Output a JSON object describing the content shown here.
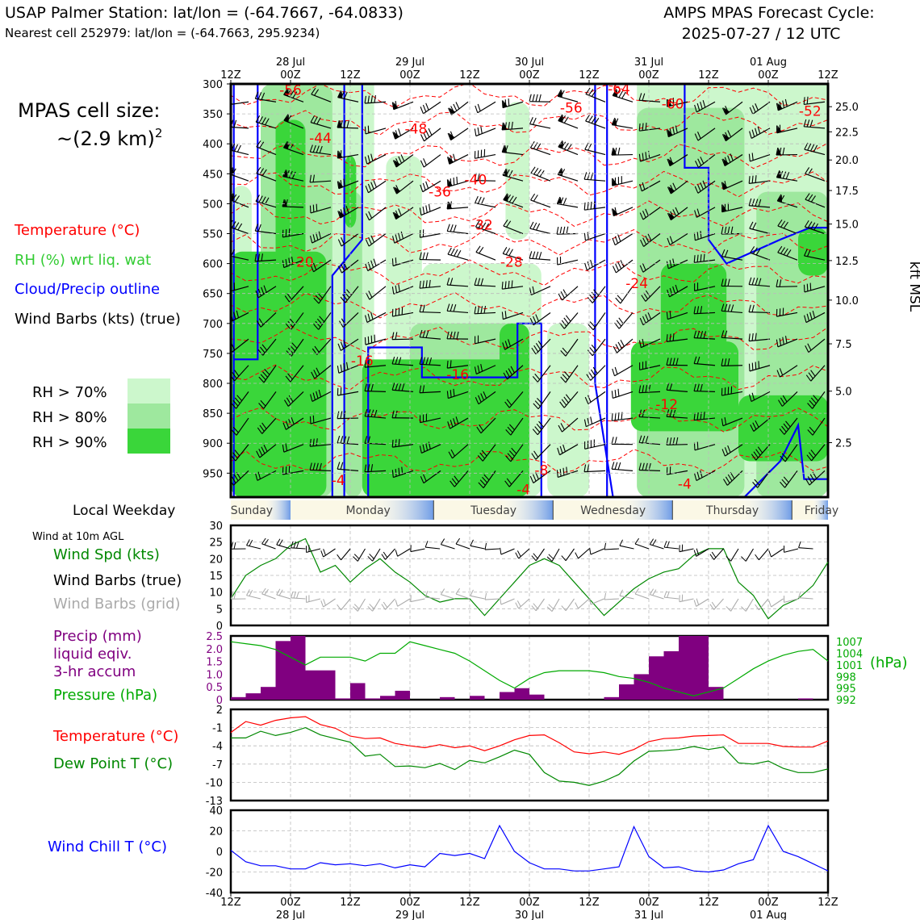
{
  "header": {
    "title_left": "USAP Palmer Station: lat/lon = (-64.7667, -64.0833)",
    "subtitle_left": "Nearest cell 252979: lat/lon = (-64.7663, 295.9234)",
    "title_right_1": "AMPS MPAS Forecast Cycle:",
    "title_right_2": "2025-07-27 / 12 UTC"
  },
  "left_legend": {
    "cell_size_1": "MPAS cell size:",
    "cell_size_2": "~(2.9 km)",
    "cell_size_sup": "2",
    "temperature": "Temperature (°C)",
    "rh": "RH (%) wrt liq. wat",
    "cloud": "Cloud/Precip outline",
    "wind": "Wind Barbs (kts) (true)",
    "rh70": "RH > 70%",
    "rh80": "RH > 80%",
    "rh90": "RH > 90%",
    "local_weekday": "Local Weekday",
    "wind10m": "Wind at 10m AGL",
    "wind_spd": "Wind Spd (kts)",
    "wind_barbs_true": "Wind Barbs (true)",
    "wind_barbs_grid": "Wind Barbs (grid)",
    "precip_1": "Precip (mm)",
    "precip_2": "liquid eqiv.",
    "precip_3": "3-hr accum",
    "pressure": "Pressure (hPa)",
    "temp2": "Temperature (°C)",
    "dewpt": "Dew Point T (°C)",
    "windchill": "Wind Chill T (°C)",
    "hpa_unit": "(hPa)",
    "kft_label": "kft MSL"
  },
  "colors": {
    "temperature": "#ff0000",
    "rh_legend": "#33cc33",
    "cloud": "#0000ff",
    "rh70": "#ccf7cc",
    "rh80": "#9ee89e",
    "rh90": "#3ad63a",
    "wind_speed": "#008800",
    "grid_barbs": "#aaaaaa",
    "precip": "#800080",
    "pressure": "#00aa00",
    "dewpoint": "#008800",
    "windchill": "#0000ff",
    "weekday_band": "#7fa7e6"
  },
  "time_axis": {
    "ticks": [
      "12Z",
      "00Z",
      "12Z",
      "00Z",
      "12Z",
      "00Z",
      "12Z",
      "00Z",
      "12Z",
      "00Z",
      "12Z"
    ],
    "dates": [
      "28 Jul",
      "29 Jul",
      "30 Jul",
      "31 Jul",
      "01 Aug"
    ]
  },
  "weekdays": [
    "Sunday",
    "Monday",
    "Tuesday",
    "Wednesday",
    "Thursday",
    "Friday"
  ],
  "chart_data": [
    {
      "type": "heatmap",
      "name": "time-height cross section",
      "y_pressure_ticks": [
        "300",
        "350",
        "400",
        "450",
        "500",
        "550",
        "600",
        "650",
        "700",
        "750",
        "800",
        "850",
        "900",
        "950"
      ],
      "y_pressure_range": [
        300,
        990
      ],
      "y_kft_ticks": [
        {
          "label": "25.0",
          "hpa": 338
        },
        {
          "label": "22.5",
          "hpa": 380
        },
        {
          "label": "20.0",
          "hpa": 427
        },
        {
          "label": "17.5",
          "hpa": 478
        },
        {
          "label": "15.0",
          "hpa": 534
        },
        {
          "label": "12.5",
          "hpa": 595
        },
        {
          "label": "10.0",
          "hpa": 661
        },
        {
          "label": "7.5",
          "hpa": 734
        },
        {
          "label": "5.0",
          "hpa": 813
        },
        {
          "label": "2.5",
          "hpa": 899
        }
      ],
      "temperature_labels": [
        {
          "text": "-56",
          "x": 1,
          "hpa": 310
        },
        {
          "text": "-44",
          "x": 1.5,
          "hpa": 390
        },
        {
          "text": "-48",
          "x": 3.1,
          "hpa": 375
        },
        {
          "text": "-40",
          "x": 4.1,
          "hpa": 460
        },
        {
          "text": "-36",
          "x": 3.5,
          "hpa": 480
        },
        {
          "text": "-56",
          "x": 5.7,
          "hpa": 340
        },
        {
          "text": "-64",
          "x": 6.5,
          "hpa": 308
        },
        {
          "text": "-60",
          "x": 7.4,
          "hpa": 333
        },
        {
          "text": "-52",
          "x": 9.7,
          "hpa": 345
        },
        {
          "text": "-32",
          "x": 4.2,
          "hpa": 535
        },
        {
          "text": "-28",
          "x": 4.7,
          "hpa": 597
        },
        {
          "text": "-20",
          "x": 1.2,
          "hpa": 597
        },
        {
          "text": "-24",
          "x": 6.8,
          "hpa": 633
        },
        {
          "text": "-16",
          "x": 2.2,
          "hpa": 762
        },
        {
          "text": "-16",
          "x": 3.8,
          "hpa": 785
        },
        {
          "text": "-12",
          "x": 7.3,
          "hpa": 835
        },
        {
          "text": "-4",
          "x": 1.8,
          "hpa": 962
        },
        {
          "text": "-8",
          "x": 5.2,
          "hpa": 945
        },
        {
          "text": "-4",
          "x": 4.9,
          "hpa": 977
        },
        {
          "text": "-4",
          "x": 7.6,
          "hpa": 968
        }
      ]
    },
    {
      "type": "line",
      "name": "wind speed at 10m",
      "x": [
        0,
        0.25,
        0.5,
        0.75,
        1,
        1.25,
        1.5,
        1.75,
        2,
        2.25,
        2.5,
        2.75,
        3,
        3.25,
        3.5,
        3.75,
        4,
        4.25,
        4.5,
        4.75,
        5,
        5.25,
        5.5,
        5.75,
        6,
        6.25,
        6.5,
        6.75,
        7,
        7.25,
        7.5,
        7.75,
        8,
        8.25,
        8.5,
        8.75,
        9,
        9.25,
        9.5,
        9.75,
        10
      ],
      "values": [
        8,
        15,
        18,
        20,
        24,
        26,
        16,
        18,
        13,
        17,
        20,
        16,
        13,
        9,
        7,
        8,
        8,
        3,
        8,
        13,
        18,
        20,
        18,
        13,
        8,
        3,
        7,
        11,
        14,
        16,
        17,
        21,
        23,
        23,
        13,
        9,
        2,
        6,
        8,
        12,
        19
      ],
      "ylim": [
        0,
        30
      ],
      "yticks": [
        "0",
        "5",
        "10",
        "15",
        "20",
        "25",
        "30"
      ]
    },
    {
      "type": "bar",
      "name": "precip 3-hr accum",
      "x": [
        0.125,
        0.375,
        0.625,
        0.875,
        1.125,
        1.375,
        1.625,
        1.875,
        2.125,
        2.375,
        2.625,
        2.875,
        3.125,
        3.375,
        3.625,
        3.875,
        4.125,
        4.375,
        4.625,
        4.875,
        5.125,
        5.375,
        5.625,
        5.875,
        6.125,
        6.375,
        6.625,
        6.875,
        7.125,
        7.375,
        7.625,
        7.875,
        8.125,
        8.375,
        8.625,
        8.875,
        9.125,
        9.375,
        9.625,
        9.875
      ],
      "values": [
        0.1,
        0.25,
        0.5,
        2.3,
        2.5,
        1.15,
        1.15,
        0.05,
        0.65,
        0.05,
        0.15,
        0.35,
        0,
        0,
        0.1,
        0,
        0.15,
        0,
        0.3,
        0.45,
        0.2,
        0,
        0,
        0,
        0,
        0.1,
        0.6,
        1.0,
        1.7,
        1.9,
        2.5,
        2.5,
        0.5,
        0,
        0,
        0,
        0,
        0,
        0.05,
        0
      ],
      "ylim": [
        0,
        2.5
      ],
      "yticks": [
        "0",
        "0.5",
        "1.0",
        "1.5",
        "2.0",
        "2.5"
      ]
    },
    {
      "type": "line",
      "name": "pressure",
      "x": [
        0,
        0.25,
        0.5,
        0.75,
        1,
        1.25,
        1.5,
        1.75,
        2,
        2.25,
        2.5,
        2.75,
        3,
        3.25,
        3.5,
        3.75,
        4,
        4.25,
        4.5,
        4.75,
        5,
        5.25,
        5.5,
        5.75,
        6,
        6.25,
        6.5,
        6.75,
        7,
        7.25,
        7.5,
        7.75,
        8,
        8.25,
        8.5,
        8.75,
        9,
        9.25,
        9.5,
        9.75,
        10
      ],
      "values": [
        1007,
        1006.5,
        1006,
        1005,
        1003,
        1001,
        1003,
        1003,
        1003,
        1002,
        1004,
        1004,
        1007,
        1006,
        1005,
        1004,
        1002,
        999.5,
        997,
        995,
        997.5,
        999,
        999.5,
        999.5,
        999.5,
        999,
        998,
        997.5,
        996.5,
        995,
        994,
        993,
        994,
        995,
        997.5,
        1000,
        1002,
        1003.5,
        1004.5,
        1005,
        1002
      ],
      "ylim": [
        992,
        1008.5
      ],
      "yticks": [
        "992",
        "995",
        "998",
        "1001",
        "1004",
        "1007"
      ]
    },
    {
      "type": "line",
      "name": "temperature and dew point",
      "x": [
        0,
        0.25,
        0.5,
        0.75,
        1,
        1.25,
        1.5,
        1.75,
        2,
        2.25,
        2.5,
        2.75,
        3,
        3.25,
        3.5,
        3.75,
        4,
        4.25,
        4.5,
        4.75,
        5,
        5.25,
        5.5,
        5.75,
        6,
        6.25,
        6.5,
        6.75,
        7,
        7.25,
        7.5,
        7.75,
        8,
        8.25,
        8.5,
        8.75,
        9,
        9.25,
        9.5,
        9.75,
        10
      ],
      "series": [
        {
          "values": [
            -1.8,
            0,
            -0.6,
            0.2,
            0.6,
            0.8,
            -0.5,
            -1.1,
            -2.4,
            -2.8,
            -2.7,
            -3.6,
            -4,
            -4.3,
            -3.8,
            -4.3,
            -4,
            -4.8,
            -4,
            -3,
            -2.3,
            -2.2,
            -3.5,
            -5,
            -5.3,
            -5,
            -5.4,
            -4.6,
            -3.3,
            -2.8,
            -2.7,
            -2.4,
            -2.3,
            -2.2,
            -3.6,
            -3.6,
            -3.6,
            -4.1,
            -4.2,
            -4.2,
            -3.2
          ]
        },
        {
          "values": [
            -2.7,
            -2.7,
            -1.6,
            -2.3,
            -1.8,
            -1,
            -2.2,
            -2.8,
            -3.4,
            -5.7,
            -5.4,
            -7.4,
            -7.3,
            -7.6,
            -6.9,
            -7.9,
            -6.4,
            -6.8,
            -5.8,
            -4.7,
            -5.4,
            -8.4,
            -9.8,
            -10,
            -10.5,
            -9.8,
            -8.7,
            -6.5,
            -4.9,
            -4.8,
            -4.6,
            -4.1,
            -4.6,
            -4.2,
            -6.8,
            -7,
            -6.5,
            -7.7,
            -8.4,
            -8.4,
            -7.8
          ]
        }
      ],
      "ylim": [
        -13,
        2
      ],
      "yticks": [
        "-13",
        "-10",
        "-7",
        "-4",
        "-1",
        "2"
      ]
    },
    {
      "type": "line",
      "name": "wind chill",
      "x": [
        0,
        0.25,
        0.5,
        0.75,
        1,
        1.25,
        1.5,
        1.75,
        2,
        2.25,
        2.5,
        2.75,
        3,
        3.25,
        3.5,
        3.75,
        4,
        4.25,
        4.5,
        4.75,
        5,
        5.25,
        5.5,
        5.75,
        6,
        6.25,
        6.5,
        6.75,
        7,
        7.25,
        7.5,
        7.75,
        8,
        8.25,
        8.5,
        8.75,
        9,
        9.25,
        9.5,
        9.75,
        10
      ],
      "values": [
        1,
        -10,
        -14,
        -14,
        -17,
        -17,
        -11,
        -13,
        -12,
        -14,
        -12,
        -16,
        -13,
        -15,
        -2,
        -4,
        -2,
        -7,
        25,
        0,
        -11,
        -17,
        -17,
        -19,
        -19,
        -17,
        -15,
        24,
        -5,
        -16,
        -15,
        -19,
        -20,
        -18,
        -12,
        -8,
        25,
        0,
        -5,
        -12,
        -19
      ],
      "ylim": [
        -40,
        40
      ],
      "yticks": [
        "-40",
        "-20",
        "0",
        "20",
        "40"
      ]
    }
  ]
}
